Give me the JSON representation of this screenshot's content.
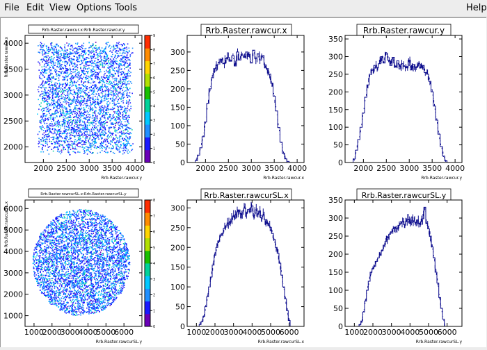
{
  "menu": {
    "file": "File",
    "edit": "Edit",
    "view": "View",
    "options": "Options",
    "tools": "Tools",
    "help": "Help"
  },
  "colors": {
    "histogram": "#0a0a8c",
    "palette": [
      "#6a00b8",
      "#1a1aff",
      "#1f8fff",
      "#00c8ff",
      "#00d29a",
      "#19c000",
      "#b2e000",
      "#ffd500",
      "#ff8c00",
      "#ff2d00"
    ]
  },
  "chart_data": [
    {
      "type": "heatmap",
      "title": "Rrb.Raster.rawcur.x:Rrb.Raster.rawcur.y",
      "xlabel": "Rrb.Raster.rawcur.y",
      "ylabel": "Rrb.Raster.rawcur.x",
      "x_ticks": [
        "2000",
        "2500",
        "3000",
        "3500",
        "4000"
      ],
      "y_ticks": [
        "2000",
        "2500",
        "3000",
        "3500",
        "4000"
      ],
      "z_ticks": [
        "0",
        "1",
        "2",
        "3",
        "4",
        "5",
        "6",
        "7",
        "8",
        "9"
      ],
      "region": {
        "shape": "square",
        "x_range": [
          1850,
          3950
        ],
        "y_range": [
          1850,
          4050
        ]
      },
      "xlim": [
        1600,
        4150
      ],
      "ylim": [
        1700,
        4150
      ],
      "zlim": [
        0,
        9
      ]
    },
    {
      "type": "bar",
      "title": "Rrb.Raster.rawcur.x",
      "xlabel": "Rrb.Raster.rawcur.x",
      "x_ticks": [
        "2000",
        "2500",
        "3000",
        "3500",
        "4000"
      ],
      "y_ticks": [
        "0",
        "50",
        "100",
        "150",
        "200",
        "250",
        "300"
      ],
      "xlim": [
        1600,
        4150
      ],
      "ylim": [
        0,
        345
      ],
      "x": [
        1750,
        1800,
        1850,
        1900,
        1950,
        2000,
        2050,
        2100,
        2150,
        2200,
        2250,
        2300,
        2350,
        2400,
        2450,
        2500,
        2550,
        2600,
        2650,
        2700,
        2750,
        2800,
        2850,
        2900,
        2950,
        3000,
        3050,
        3100,
        3150,
        3200,
        3250,
        3300,
        3350,
        3400,
        3450,
        3500,
        3550,
        3600,
        3650,
        3700,
        3750,
        3800,
        3850,
        3900,
        3950
      ],
      "values": [
        0,
        5,
        20,
        40,
        70,
        110,
        160,
        200,
        230,
        255,
        265,
        272,
        280,
        268,
        282,
        285,
        275,
        290,
        262,
        300,
        278,
        292,
        285,
        300,
        288,
        270,
        305,
        282,
        295,
        278,
        290,
        265,
        255,
        240,
        215,
        180,
        140,
        95,
        55,
        25,
        10,
        3,
        0,
        0,
        0
      ]
    },
    {
      "type": "bar",
      "title": "Rrb.Raster.rawcur.y",
      "xlabel": "Rrb.Raster.rawcur.y",
      "x_ticks": [
        "2000",
        "2500",
        "3000",
        "3500",
        "4000"
      ],
      "y_ticks": [
        "0",
        "50",
        "100",
        "150",
        "200",
        "250",
        "300",
        "350"
      ],
      "xlim": [
        1600,
        4150
      ],
      "ylim": [
        0,
        360
      ],
      "x": [
        1750,
        1800,
        1850,
        1900,
        1950,
        2000,
        2050,
        2100,
        2150,
        2200,
        2250,
        2300,
        2350,
        2400,
        2450,
        2500,
        2550,
        2600,
        2650,
        2700,
        2750,
        2800,
        2850,
        2900,
        2950,
        3000,
        3050,
        3100,
        3150,
        3200,
        3250,
        3300,
        3350,
        3400,
        3450,
        3500,
        3550,
        3600,
        3650,
        3700,
        3750,
        3800,
        3850,
        3900,
        3950
      ],
      "values": [
        0,
        10,
        35,
        65,
        100,
        140,
        185,
        220,
        250,
        262,
        275,
        268,
        280,
        300,
        282,
        310,
        290,
        275,
        298,
        270,
        288,
        265,
        280,
        272,
        268,
        290,
        262,
        278,
        270,
        282,
        268,
        275,
        255,
        250,
        230,
        200,
        160,
        120,
        80,
        45,
        18,
        5,
        0,
        0,
        0
      ]
    },
    {
      "type": "heatmap",
      "title": "Rrb.Raster.rawcurSL.x:Rrb.Raster.rawcurSL.y",
      "xlabel": "Rrb.Raster.rawcurSL.y",
      "ylabel": "Rrb.Raster.rawcurSL.x",
      "x_ticks": [
        "1000",
        "2000",
        "3000",
        "4000",
        "5000",
        "6000"
      ],
      "y_ticks": [
        "1000",
        "2000",
        "3000",
        "4000",
        "5000",
        "6000"
      ],
      "z_ticks": [
        "0",
        "1",
        "2",
        "3",
        "4",
        "5",
        "6",
        "7",
        "8"
      ],
      "region": {
        "shape": "circle",
        "center": [
          3600,
          3500
        ],
        "radius": 2700
      },
      "xlim": [
        500,
        7000
      ],
      "ylim": [
        500,
        6400
      ],
      "zlim": [
        0,
        8
      ]
    },
    {
      "type": "bar",
      "title": "Rrb.Raster.rawcurSL.x",
      "xlabel": "Rrb.Raster.rawcurSL.x",
      "x_ticks": [
        "1000",
        "2000",
        "3000",
        "4000",
        "5000",
        "6000"
      ],
      "y_ticks": [
        "0",
        "50",
        "100",
        "150",
        "200",
        "250",
        "300"
      ],
      "xlim": [
        500,
        6800
      ],
      "ylim": [
        0,
        320
      ],
      "x": [
        1000,
        1100,
        1200,
        1300,
        1400,
        1500,
        1600,
        1700,
        1800,
        1900,
        2000,
        2100,
        2200,
        2300,
        2400,
        2500,
        2600,
        2700,
        2800,
        2900,
        3000,
        3100,
        3200,
        3300,
        3400,
        3500,
        3600,
        3700,
        3800,
        3900,
        4000,
        4100,
        4200,
        4300,
        4400,
        4500,
        4600,
        4700,
        4800,
        4900,
        5000,
        5100,
        5200,
        5300,
        5400,
        5500,
        5600,
        5700,
        5800,
        5900,
        6000,
        6100
      ],
      "values": [
        0,
        0,
        5,
        12,
        25,
        50,
        75,
        100,
        125,
        155,
        180,
        200,
        215,
        230,
        235,
        248,
        255,
        262,
        265,
        272,
        278,
        282,
        290,
        295,
        285,
        292,
        300,
        288,
        296,
        290,
        305,
        280,
        295,
        285,
        292,
        275,
        282,
        270,
        260,
        255,
        250,
        235,
        220,
        200,
        185,
        160,
        130,
        100,
        70,
        40,
        15,
        0
      ]
    },
    {
      "type": "bar",
      "title": "Rrb.Raster.rawcurSL.y",
      "xlabel": "Rrb.Raster.rawcurSL.y",
      "x_ticks": [
        "1000",
        "2000",
        "3000",
        "4000",
        "5000",
        "6000"
      ],
      "y_ticks": [
        "0",
        "50",
        "100",
        "150",
        "200",
        "250",
        "300",
        "350"
      ],
      "xlim": [
        500,
        6800
      ],
      "ylim": [
        0,
        350
      ],
      "x": [
        1000,
        1100,
        1200,
        1300,
        1400,
        1500,
        1600,
        1700,
        1800,
        1900,
        2000,
        2100,
        2200,
        2300,
        2400,
        2500,
        2600,
        2700,
        2800,
        2900,
        3000,
        3100,
        3200,
        3300,
        3400,
        3500,
        3600,
        3700,
        3800,
        3900,
        4000,
        4100,
        4200,
        4300,
        4400,
        4500,
        4600,
        4700,
        4800,
        4900,
        5000,
        5100,
        5200,
        5300,
        5400,
        5500,
        5600,
        5700,
        5800,
        5900,
        6000,
        6100
      ],
      "values": [
        0,
        0,
        0,
        5,
        15,
        40,
        70,
        100,
        125,
        150,
        160,
        170,
        180,
        190,
        200,
        210,
        225,
        235,
        245,
        255,
        262,
        270,
        275,
        272,
        280,
        285,
        290,
        282,
        290,
        295,
        285,
        300,
        292,
        288,
        295,
        285,
        290,
        298,
        330,
        285,
        270,
        250,
        220,
        190,
        150,
        120,
        80,
        50,
        20,
        0,
        0,
        0
      ]
    }
  ]
}
